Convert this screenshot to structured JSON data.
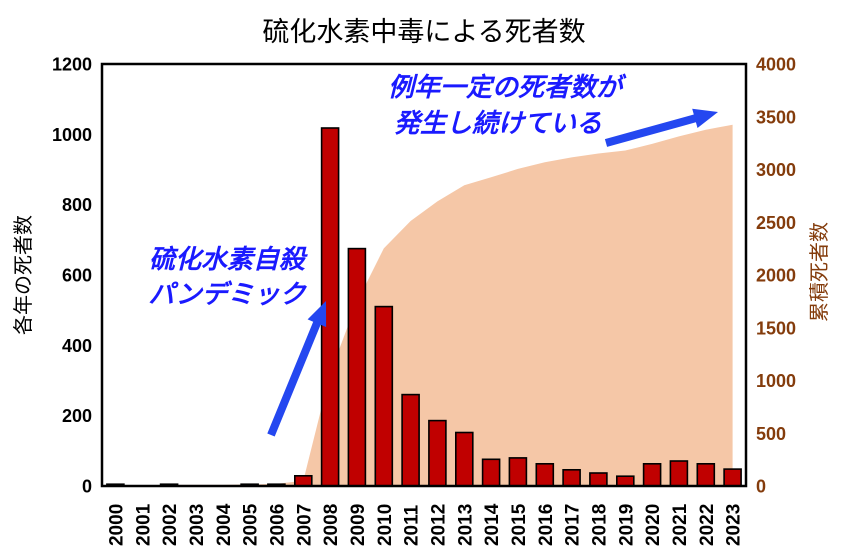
{
  "title": "硫化水素中毒による死者数",
  "colors": {
    "background": "#FFFFFF",
    "bar_fill": "#C00000",
    "bar_outline": "#000000",
    "area_fill": "#F5C7A7",
    "plot_border": "#000000",
    "left_axis_text": "#000000",
    "right_axis_text": "#843C0C",
    "annotation_text": "#1A1AFF",
    "annotation_arrow": "#2447F0"
  },
  "annotations": {
    "constant_deaths": {
      "line1": "例年一定の死者数が",
      "line2": "発生し続けている"
    },
    "pandemic": {
      "line1": "硫化水素自殺",
      "line2": "パンデミック"
    }
  },
  "chart_data": {
    "type": "bar",
    "subtype": "combo bar + cumulative area, dual axis",
    "title": "硫化水素中毒による死者数",
    "grid": "off",
    "legend": "none",
    "categories": [
      "2000",
      "2001",
      "2002",
      "2003",
      "2004",
      "2005",
      "2006",
      "2007",
      "2008",
      "2009",
      "2010",
      "2011",
      "2012",
      "2013",
      "2014",
      "2015",
      "2016",
      "2017",
      "2018",
      "2019",
      "2020",
      "2021",
      "2022",
      "2023"
    ],
    "series": [
      {
        "name": "各年の死者数",
        "type": "bar",
        "axis": "left",
        "values": [
          5,
          0,
          5,
          0,
          0,
          5,
          5,
          29,
          1018,
          675,
          510,
          260,
          186,
          152,
          76,
          80,
          63,
          46,
          37,
          28,
          63,
          71,
          63,
          48
        ]
      },
      {
        "name": "累積死者数",
        "type": "area",
        "axis": "right",
        "values": [
          5,
          5,
          10,
          10,
          10,
          15,
          20,
          49,
          1067,
          1742,
          2252,
          2512,
          2698,
          2850,
          2926,
          3006,
          3069,
          3115,
          3152,
          3180,
          3243,
          3314,
          3377,
          3425
        ]
      }
    ],
    "left_axis": {
      "label": "各年の死者数",
      "min": 0,
      "max": 1200,
      "step": 200
    },
    "right_axis": {
      "label": "累積死者数",
      "min": 0,
      "max": 4000,
      "step": 500
    }
  }
}
